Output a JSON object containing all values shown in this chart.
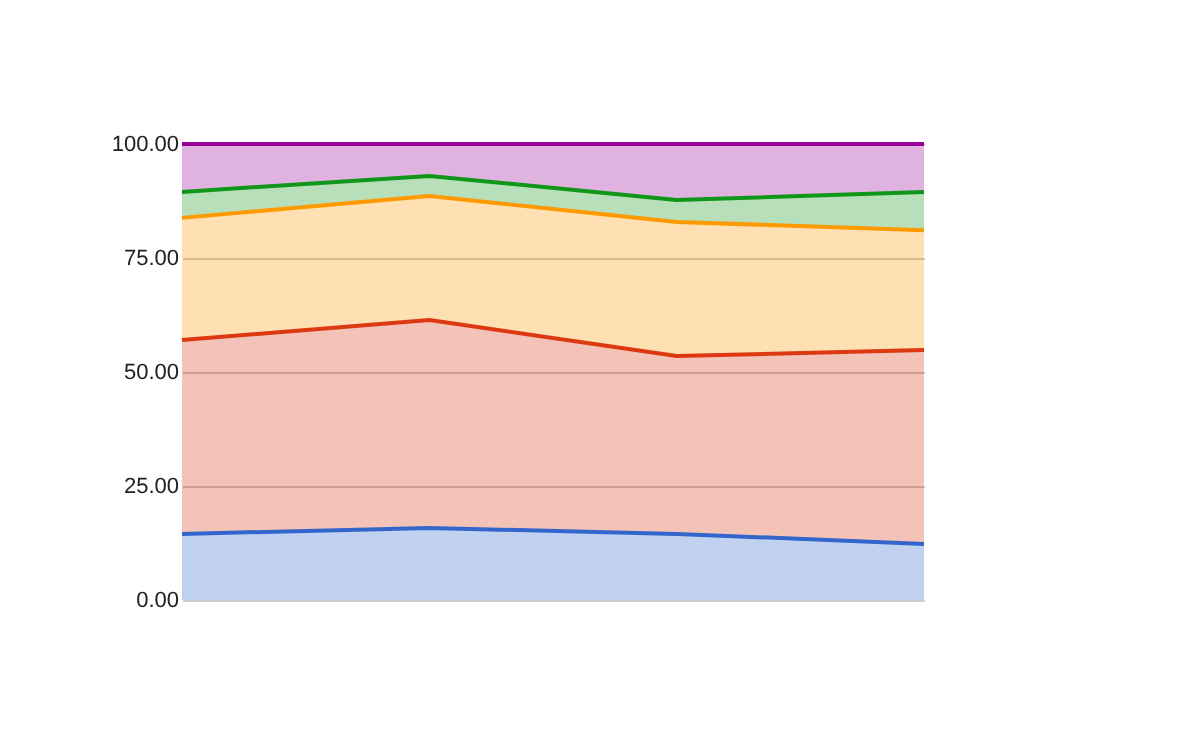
{
  "chart_data": {
    "type": "area",
    "stacked": true,
    "categories": [
      null,
      null,
      null,
      null
    ],
    "series": [
      {
        "color": "#3366cc",
        "values": [
          14.5,
          15.8,
          14.5,
          12.3
        ]
      },
      {
        "color": "#dc3912",
        "values": [
          42.5,
          45.6,
          39.0,
          42.5
        ]
      },
      {
        "color": "#ff9900",
        "values": [
          26.8,
          27.2,
          29.4,
          26.3
        ]
      },
      {
        "color": "#109618",
        "values": [
          5.7,
          4.4,
          4.8,
          8.4
        ]
      },
      {
        "color": "#990099",
        "values": [
          10.5,
          7.0,
          12.3,
          10.5
        ]
      }
    ],
    "ylim": [
      0,
      100
    ],
    "yticks": [
      {
        "value": 0,
        "label": "0.00"
      },
      {
        "value": 25,
        "label": "25.00"
      },
      {
        "value": 50,
        "label": "50.00"
      },
      {
        "value": 75,
        "label": "75.00"
      },
      {
        "value": 100,
        "label": "100.00"
      }
    ],
    "grid": "y",
    "tick_labels": "y"
  }
}
